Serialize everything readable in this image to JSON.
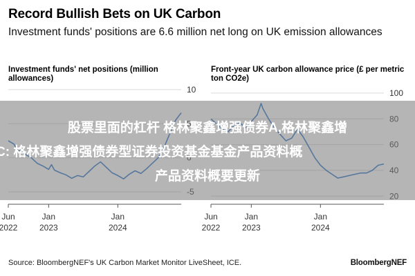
{
  "header": {
    "title": "Record Bullish Bets on UK Carbon",
    "subtitle": "Investment funds' positions are 6.6 million net long on UK emission allowances"
  },
  "chart_data": [
    {
      "type": "line",
      "title": "Investment funds' net positions (million allowances)",
      "y_ticks": [
        10,
        5,
        0,
        -5
      ],
      "ylim": [
        -6,
        11
      ],
      "x_ticks": [
        {
          "line1": "Jun",
          "line2": "2022",
          "t": 0
        },
        {
          "line1": "Jan",
          "line2": "2023",
          "t": 7
        },
        {
          "line1": "Jan",
          "line2": "2024",
          "t": 19
        }
      ],
      "xlim": [
        0,
        30
      ],
      "color": "#2d76c9",
      "grid": true,
      "series": [
        {
          "values": [
            [
              0,
              2.5
            ],
            [
              1,
              2.0
            ],
            [
              1.5,
              1.2
            ],
            [
              2,
              1.0
            ],
            [
              3,
              0.5
            ],
            [
              4,
              0.0
            ],
            [
              5,
              -0.8
            ],
            [
              6,
              -1.2
            ],
            [
              7,
              -1.7
            ],
            [
              7.5,
              -1.0
            ],
            [
              8,
              -1.8
            ],
            [
              9,
              -2.2
            ],
            [
              10,
              -2.5
            ],
            [
              11,
              -3.0
            ],
            [
              12,
              -2.6
            ],
            [
              13,
              -2.8
            ],
            [
              14,
              -2.0
            ],
            [
              15,
              -1.2
            ],
            [
              16,
              -0.6
            ],
            [
              17,
              -1.4
            ],
            [
              18,
              -2.2
            ],
            [
              19,
              -2.6
            ],
            [
              20,
              -3.1
            ],
            [
              21,
              -2.4
            ],
            [
              22,
              -1.9
            ],
            [
              23,
              -2.3
            ],
            [
              24,
              -1.6
            ],
            [
              25,
              -0.8
            ],
            [
              26,
              0.0
            ],
            [
              27,
              1.5
            ],
            [
              28,
              3.5
            ],
            [
              29,
              5.5
            ],
            [
              30,
              6.6
            ]
          ]
        }
      ]
    },
    {
      "type": "line",
      "title": "Front-year UK carbon allowance price (£ per metric ton CO2e)",
      "y_ticks": [
        100,
        80,
        60,
        40,
        20
      ],
      "ylim": [
        18,
        108
      ],
      "x_ticks": [
        {
          "line1": "Jun",
          "line2": "2022",
          "t": 0
        },
        {
          "line1": "Jan",
          "line2": "2023",
          "t": 7
        },
        {
          "line1": "Jan",
          "line2": "2024",
          "t": 19
        }
      ],
      "xlim": [
        0,
        30
      ],
      "color": "#2d76c9",
      "grid": true,
      "series": [
        {
          "values": [
            [
              0,
              80
            ],
            [
              1,
              76
            ],
            [
              2,
              72
            ],
            [
              3,
              70
            ],
            [
              4,
              75
            ],
            [
              5,
              77
            ],
            [
              6,
              73
            ],
            [
              7,
              78
            ],
            [
              8,
              83
            ],
            [
              8.7,
              92
            ],
            [
              9,
              88
            ],
            [
              10,
              80
            ],
            [
              11,
              73
            ],
            [
              12,
              68
            ],
            [
              13,
              63
            ],
            [
              14,
              65
            ],
            [
              15,
              72
            ],
            [
              16,
              66
            ],
            [
              17,
              58
            ],
            [
              18,
              50
            ],
            [
              19,
              44
            ],
            [
              20,
              40
            ],
            [
              21,
              37
            ],
            [
              22,
              34
            ],
            [
              23,
              35
            ],
            [
              24,
              36
            ],
            [
              25,
              37
            ],
            [
              26,
              38
            ],
            [
              27,
              38
            ],
            [
              28,
              40
            ],
            [
              29,
              44
            ],
            [
              30,
              45
            ]
          ]
        }
      ]
    }
  ],
  "footer": {
    "source": "Source: BloombergNEF's UK Carbon Market Monitor LiveSheet, ICE.",
    "brand": "BloombergNEF"
  },
  "overlay": {
    "line1": "股票里面的杠杆 格林聚鑫增强债券A,格林聚鑫增",
    "line2": "C: 格林聚鑫增强债券型证券投资基金基金产品资料概",
    "line3": "产品资料概要更新"
  }
}
